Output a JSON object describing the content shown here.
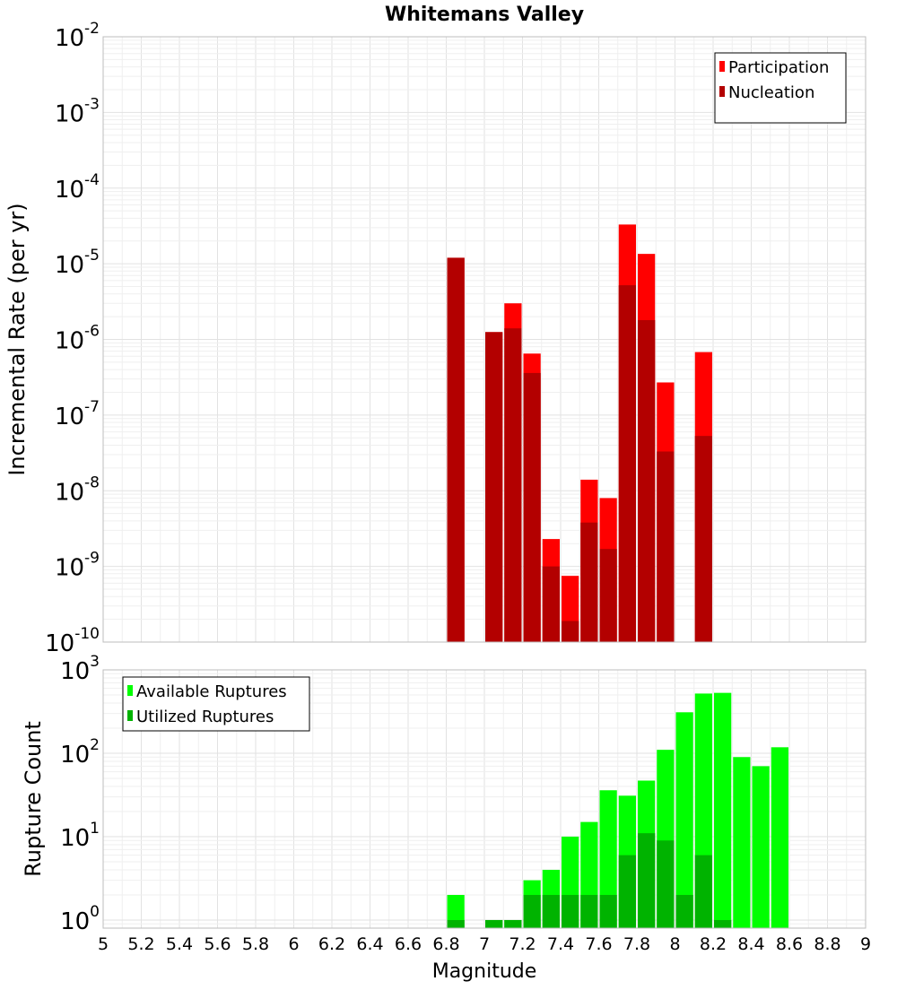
{
  "chart_data": [
    {
      "type": "bar",
      "title": "Whitemans Valley",
      "ylabel": "Incremental Rate (per yr)",
      "xlabel": "",
      "yscale": "log",
      "ylim": [
        1e-10,
        0.01
      ],
      "xlim": [
        5,
        9
      ],
      "ytick_labels": [
        {
          "base": "10",
          "exp": "-10"
        },
        {
          "base": "10",
          "exp": "-9"
        },
        {
          "base": "10",
          "exp": "-8"
        },
        {
          "base": "10",
          "exp": "-7"
        },
        {
          "base": "10",
          "exp": "-6"
        },
        {
          "base": "10",
          "exp": "-5"
        },
        {
          "base": "10",
          "exp": "-4"
        },
        {
          "base": "10",
          "exp": "-3"
        },
        {
          "base": "10",
          "exp": "-2"
        }
      ],
      "legend": {
        "placement": "top-right"
      },
      "series": [
        {
          "name": "Participation",
          "color": "#ff0000",
          "x": [
            6.85,
            7.05,
            7.15,
            7.25,
            7.35,
            7.45,
            7.55,
            7.65,
            7.75,
            7.85,
            7.95,
            8.15
          ],
          "values": [
            1.2e-05,
            1.25e-06,
            3e-06,
            6.5e-07,
            2.3e-09,
            7.5e-10,
            1.4e-08,
            8e-09,
            3.3e-05,
            1.35e-05,
            2.7e-07,
            6.8e-07
          ]
        },
        {
          "name": "Nucleation",
          "color": "#b30000",
          "x": [
            6.85,
            7.05,
            7.15,
            7.25,
            7.35,
            7.45,
            7.55,
            7.65,
            7.75,
            7.85,
            7.95,
            8.15
          ],
          "values": [
            1.2e-05,
            1.25e-06,
            1.4e-06,
            3.6e-07,
            1e-09,
            1.9e-10,
            3.8e-09,
            1.7e-09,
            5.2e-06,
            1.8e-06,
            3.3e-08,
            5.3e-08
          ]
        }
      ]
    },
    {
      "type": "bar",
      "title": "",
      "ylabel": "Rupture Count",
      "xlabel": "Magnitude",
      "yscale": "log",
      "ylim": [
        0.8,
        1000
      ],
      "xlim": [
        5,
        9
      ],
      "xticks": [
        "5",
        "5.2",
        "5.4",
        "5.6",
        "5.8",
        "6",
        "6.2",
        "6.4",
        "6.6",
        "6.8",
        "7",
        "7.2",
        "7.4",
        "7.6",
        "7.8",
        "8",
        "8.2",
        "8.4",
        "8.6",
        "8.8",
        "9"
      ],
      "ytick_labels": [
        {
          "base": "10",
          "exp": "0"
        },
        {
          "base": "10",
          "exp": "1"
        },
        {
          "base": "10",
          "exp": "2"
        },
        {
          "base": "10",
          "exp": "3"
        }
      ],
      "legend": {
        "placement": "top-left"
      },
      "series": [
        {
          "name": "Available Ruptures",
          "color": "#00ff00",
          "x": [
            6.85,
            7.05,
            7.15,
            7.25,
            7.35,
            7.45,
            7.55,
            7.65,
            7.75,
            7.85,
            7.95,
            8.05,
            8.15,
            8.25,
            8.35,
            8.45,
            8.55
          ],
          "values": [
            2,
            1,
            1,
            3,
            4,
            10,
            15,
            36,
            31,
            47,
            110,
            310,
            520,
            530,
            90,
            70,
            118
          ]
        },
        {
          "name": "Utilized Ruptures",
          "color": "#00b300",
          "x": [
            6.85,
            7.05,
            7.15,
            7.25,
            7.35,
            7.45,
            7.55,
            7.65,
            7.75,
            7.85,
            7.95,
            8.05,
            8.15,
            8.25
          ],
          "values": [
            1,
            1,
            1,
            2,
            2,
            2,
            2,
            2,
            6,
            11,
            9,
            2,
            6,
            1
          ]
        }
      ]
    }
  ]
}
